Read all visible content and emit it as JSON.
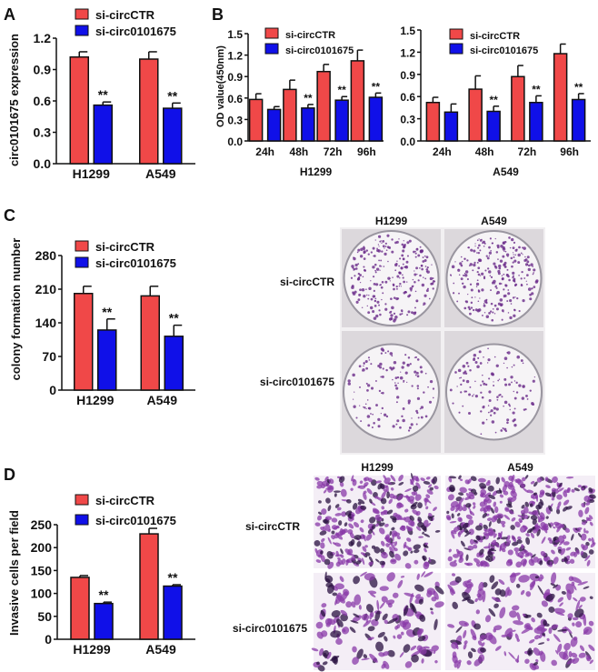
{
  "colors": {
    "control": "#f04848",
    "knockdown": "#1010e8",
    "stain": "#6a2a8a"
  },
  "panels": {
    "A": {
      "letter": "A"
    },
    "B": {
      "letter": "B"
    },
    "C": {
      "letter": "C",
      "image_columns": [
        "H1299",
        "A549"
      ],
      "image_rows": [
        "si-circCTR",
        "si-circ0101675"
      ]
    },
    "D": {
      "letter": "D",
      "image_columns": [
        "H1299",
        "A549"
      ],
      "image_rows": [
        "si-circCTR",
        "si-circ0101675"
      ]
    }
  },
  "chart_data": [
    {
      "id": "A",
      "type": "bar",
      "ylabel": "circ0101675 expression",
      "ylim": [
        0,
        1.2
      ],
      "yticks": [
        "0.0",
        "0.3",
        "0.6",
        "0.9",
        "1.2"
      ],
      "categories": [
        "H1299",
        "A549"
      ],
      "legend": "top",
      "series": [
        {
          "name": "si-circCTR",
          "values": [
            1.02,
            1.0
          ],
          "errors": [
            0.05,
            0.07
          ],
          "significance": [
            "",
            ""
          ]
        },
        {
          "name": "si-circ0101675",
          "values": [
            0.56,
            0.53
          ],
          "errors": [
            0.03,
            0.05
          ],
          "significance": [
            "**",
            "**"
          ]
        }
      ]
    },
    {
      "id": "B1",
      "type": "bar",
      "ylabel": "OD value(450nm)",
      "xlabel": "H1299",
      "ylim": [
        0,
        1.5
      ],
      "yticks": [
        "0.0",
        "0.3",
        "0.6",
        "0.9",
        "1.2",
        "1.5"
      ],
      "categories": [
        "24h",
        "48h",
        "72h",
        "96h"
      ],
      "legend": "top-left",
      "series": [
        {
          "name": "si-circCTR",
          "values": [
            0.58,
            0.72,
            0.97,
            1.12
          ],
          "errors": [
            0.08,
            0.13,
            0.1,
            0.15
          ],
          "significance": [
            "",
            "",
            "",
            ""
          ]
        },
        {
          "name": "si-circ0101675",
          "values": [
            0.44,
            0.46,
            0.57,
            0.61
          ],
          "errors": [
            0.04,
            0.05,
            0.05,
            0.06
          ],
          "significance": [
            "",
            "**",
            "**",
            "**"
          ]
        }
      ]
    },
    {
      "id": "B2",
      "type": "bar",
      "xlabel": "A549",
      "ylim": [
        0,
        1.5
      ],
      "yticks": [
        "0.0",
        "0.3",
        "0.6",
        "0.9",
        "1.2",
        "1.5"
      ],
      "categories": [
        "24h",
        "48h",
        "72h",
        "96h"
      ],
      "legend": "top-left",
      "series": [
        {
          "name": "si-circCTR",
          "values": [
            0.52,
            0.7,
            0.87,
            1.18
          ],
          "errors": [
            0.07,
            0.18,
            0.15,
            0.13
          ],
          "significance": [
            "",
            "",
            "",
            ""
          ]
        },
        {
          "name": "si-circ0101675",
          "values": [
            0.39,
            0.4,
            0.52,
            0.56
          ],
          "errors": [
            0.11,
            0.07,
            0.09,
            0.08
          ],
          "significance": [
            "",
            "**",
            "**",
            "**"
          ]
        }
      ]
    },
    {
      "id": "C",
      "type": "bar",
      "ylabel": "colony formation number",
      "ylim": [
        0,
        280
      ],
      "yticks": [
        "0",
        "70",
        "140",
        "210",
        "280"
      ],
      "categories": [
        "H1299",
        "A549"
      ],
      "legend": "top",
      "series": [
        {
          "name": "si-circCTR",
          "values": [
            201,
            196
          ],
          "errors": [
            15,
            20
          ],
          "significance": [
            "",
            ""
          ]
        },
        {
          "name": "si-circ0101675",
          "values": [
            125,
            112
          ],
          "errors": [
            23,
            23
          ],
          "significance": [
            "**",
            "**"
          ]
        }
      ]
    },
    {
      "id": "D",
      "type": "bar",
      "ylabel": "Invasive cells per field",
      "ylim": [
        0,
        250
      ],
      "yticks": [
        "0",
        "50",
        "100",
        "150",
        "200",
        "250"
      ],
      "categories": [
        "H1299",
        "A549"
      ],
      "legend": "top",
      "series": [
        {
          "name": "si-circCTR",
          "values": [
            135,
            230
          ],
          "errors": [
            4,
            12
          ],
          "significance": [
            "",
            ""
          ]
        },
        {
          "name": "si-circ0101675",
          "values": [
            78,
            116
          ],
          "errors": [
            3,
            3
          ],
          "significance": [
            "**",
            "**"
          ]
        }
      ]
    }
  ]
}
